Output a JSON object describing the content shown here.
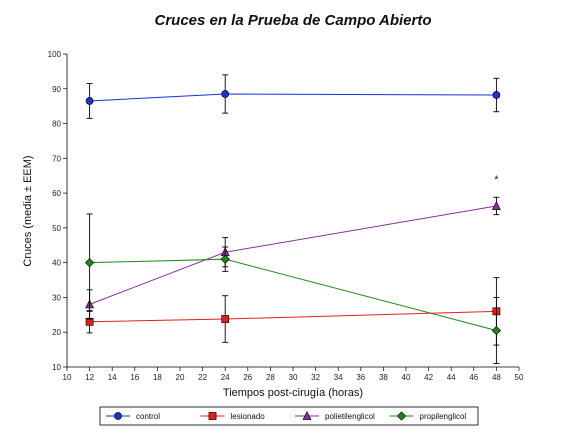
{
  "chart_data": {
    "type": "line",
    "title": "Cruces en la Prueba de Campo Abierto",
    "xlabel": "Tiempos post-cirugía (horas)",
    "ylabel": "Cruces (media ± EEM)",
    "xlim": [
      10,
      50
    ],
    "ylim": [
      10,
      100
    ],
    "xticks": [
      10,
      12,
      14,
      16,
      18,
      20,
      22,
      24,
      26,
      28,
      30,
      32,
      34,
      36,
      38,
      40,
      42,
      44,
      46,
      48,
      50
    ],
    "yticks": [
      10,
      20,
      30,
      40,
      50,
      60,
      70,
      80,
      90,
      100
    ],
    "x": [
      12,
      24,
      48
    ],
    "grid": false,
    "legend_position": "bottom",
    "series": [
      {
        "name": "control",
        "color": "#1f2fd0",
        "marker": "circle",
        "values": [
          86.5,
          88.5,
          88.2
        ],
        "errors": [
          5.0,
          5.5,
          4.8
        ]
      },
      {
        "name": "lesionado",
        "color": "#e02020",
        "marker": "square",
        "values": [
          23.0,
          23.8,
          26.0
        ],
        "errors": [
          3.2,
          6.7,
          9.7
        ]
      },
      {
        "name": "polietilenglicol",
        "color": "#8a2f9a",
        "marker": "triangle",
        "values": [
          28.0,
          43.0,
          56.3
        ],
        "errors": [
          4.2,
          4.2,
          2.5
        ]
      },
      {
        "name": "propilenglicol",
        "color": "#1a8a1a",
        "marker": "diamond",
        "values": [
          40.0,
          41.0,
          20.5
        ],
        "errors": [
          14.0,
          3.5,
          9.5
        ]
      }
    ],
    "annotations": [
      {
        "text": "*",
        "x": 48,
        "y": 64
      }
    ]
  }
}
